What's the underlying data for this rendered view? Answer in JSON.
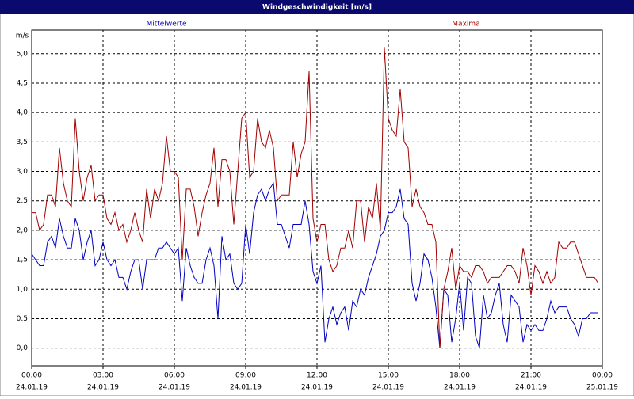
{
  "chart_data": {
    "type": "line",
    "title": "Windgeschwindigkeit [m/s]",
    "y_unit": "m/s",
    "x": [
      0,
      10,
      20,
      30,
      40,
      50,
      60,
      70,
      80,
      90,
      100,
      110,
      120,
      130,
      140,
      150,
      160,
      170,
      180,
      190,
      200,
      210,
      220,
      230,
      240,
      250,
      260,
      270,
      280,
      290,
      300,
      310,
      320,
      330,
      340,
      350,
      360,
      370,
      380,
      390,
      400,
      410,
      420,
      430,
      440,
      450,
      460,
      470,
      480,
      490,
      500,
      510,
      520,
      530,
      540,
      550,
      560,
      570,
      580,
      590,
      600,
      610,
      620,
      630,
      640,
      650,
      660,
      670,
      680,
      690,
      700,
      710,
      720,
      730,
      740,
      750,
      760,
      770,
      780,
      790,
      800,
      810,
      820,
      830,
      840,
      850,
      860,
      870,
      880,
      890,
      900,
      910,
      920,
      930,
      940,
      950,
      960,
      970,
      980,
      990,
      1000,
      1010,
      1020,
      1030,
      1040,
      1050,
      1060,
      1070,
      1080,
      1090,
      1100,
      1110,
      1120,
      1130,
      1140,
      1150,
      1160,
      1170,
      1180,
      1190,
      1200,
      1210,
      1220,
      1230,
      1240,
      1250,
      1260,
      1270,
      1280,
      1290,
      1300,
      1310,
      1320,
      1330,
      1340,
      1350,
      1360,
      1370,
      1380,
      1390,
      1400,
      1410,
      1420,
      1430
    ],
    "series": [
      {
        "name": "Mittelwerte",
        "color": "#0000c0",
        "values": [
          1.6,
          1.5,
          1.4,
          1.4,
          1.8,
          1.9,
          1.7,
          2.2,
          1.9,
          1.7,
          1.7,
          2.2,
          2.0,
          1.5,
          1.8,
          2.0,
          1.4,
          1.5,
          1.8,
          1.5,
          1.4,
          1.5,
          1.2,
          1.2,
          1.0,
          1.3,
          1.5,
          1.5,
          1.0,
          1.5,
          1.5,
          1.5,
          1.7,
          1.7,
          1.8,
          1.7,
          1.6,
          1.7,
          0.8,
          1.7,
          1.4,
          1.2,
          1.1,
          1.1,
          1.5,
          1.7,
          1.4,
          0.5,
          1.9,
          1.5,
          1.6,
          1.1,
          1.0,
          1.1,
          2.1,
          1.6,
          2.3,
          2.6,
          2.7,
          2.5,
          2.7,
          2.8,
          2.1,
          2.1,
          1.9,
          1.7,
          2.1,
          2.1,
          2.1,
          2.5,
          2.1,
          1.3,
          1.1,
          1.4,
          0.1,
          0.5,
          0.7,
          0.4,
          0.6,
          0.7,
          0.3,
          0.8,
          0.7,
          1.0,
          0.9,
          1.2,
          1.4,
          1.6,
          1.9,
          2.0,
          2.3,
          2.3,
          2.4,
          2.7,
          2.2,
          2.1,
          1.1,
          0.8,
          1.1,
          1.6,
          1.5,
          1.2,
          0.7,
          0.0,
          1.0,
          0.9,
          0.1,
          0.5,
          1.1,
          0.3,
          1.2,
          1.1,
          0.2,
          0.0,
          0.9,
          0.5,
          0.6,
          0.9,
          1.1,
          0.4,
          0.1,
          0.9,
          0.8,
          0.7,
          0.1,
          0.4,
          0.3,
          0.4,
          0.3,
          0.3,
          0.5,
          0.8,
          0.6,
          0.7,
          0.7,
          0.7,
          0.5,
          0.4,
          0.2,
          0.5,
          0.5,
          0.6,
          0.6,
          0.6
        ]
      },
      {
        "name": "Maxima",
        "color": "#a00000",
        "values": [
          2.3,
          2.3,
          2.0,
          2.1,
          2.6,
          2.6,
          2.4,
          3.4,
          2.8,
          2.5,
          2.4,
          3.9,
          3.0,
          2.5,
          2.9,
          3.1,
          2.5,
          2.6,
          2.6,
          2.2,
          2.1,
          2.3,
          2.0,
          2.1,
          1.8,
          2.0,
          2.3,
          2.0,
          1.8,
          2.7,
          2.2,
          2.7,
          2.5,
          2.8,
          3.6,
          3.0,
          3.0,
          2.9,
          1.5,
          2.7,
          2.7,
          2.4,
          1.9,
          2.3,
          2.6,
          2.8,
          3.4,
          2.4,
          3.2,
          3.2,
          3.0,
          2.1,
          3.0,
          3.9,
          4.0,
          2.9,
          3.0,
          3.9,
          3.5,
          3.4,
          3.7,
          3.4,
          2.5,
          2.6,
          2.6,
          2.6,
          3.5,
          2.9,
          3.3,
          3.5,
          4.7,
          2.2,
          1.8,
          2.1,
          2.1,
          1.5,
          1.3,
          1.4,
          1.7,
          1.7,
          2.0,
          1.7,
          2.5,
          2.5,
          1.8,
          2.4,
          2.2,
          2.8,
          2.0,
          5.1,
          3.9,
          3.7,
          3.6,
          4.4,
          3.5,
          3.4,
          2.4,
          2.7,
          2.4,
          2.3,
          2.1,
          2.1,
          1.8,
          0.0,
          1.0,
          1.3,
          1.7,
          1.0,
          1.4,
          1.3,
          1.3,
          1.2,
          1.4,
          1.4,
          1.3,
          1.1,
          1.2,
          1.2,
          1.2,
          1.3,
          1.4,
          1.4,
          1.3,
          1.1,
          1.7,
          1.4,
          0.9,
          1.4,
          1.3,
          1.1,
          1.3,
          1.1,
          1.2,
          1.8,
          1.7,
          1.7,
          1.8,
          1.8,
          1.6,
          1.4,
          1.2,
          1.2,
          1.2,
          1.1
        ]
      }
    ],
    "xlim": [
      0,
      1440
    ],
    "xticks": [
      {
        "value": 0,
        "label": "00:00",
        "sublabel": "24.01.19"
      },
      {
        "value": 180,
        "label": "03:00",
        "sublabel": "24.01.19"
      },
      {
        "value": 360,
        "label": "06:00",
        "sublabel": "24.01.19"
      },
      {
        "value": 540,
        "label": "09:00",
        "sublabel": "24.01.19"
      },
      {
        "value": 720,
        "label": "12:00",
        "sublabel": "24.01.19"
      },
      {
        "value": 900,
        "label": "15:00",
        "sublabel": "24.01.19"
      },
      {
        "value": 1080,
        "label": "18:00",
        "sublabel": "24.01.19"
      },
      {
        "value": 1260,
        "label": "21:00",
        "sublabel": "24.01.19"
      },
      {
        "value": 1440,
        "label": "00:00",
        "sublabel": "25.01.19"
      }
    ],
    "ylim": [
      -0.3,
      5.4
    ],
    "yticks": [
      {
        "value": 0,
        "label": "0,0"
      },
      {
        "value": 0.5,
        "label": "0,5"
      },
      {
        "value": 1,
        "label": "1,0"
      },
      {
        "value": 1.5,
        "label": "1,5"
      },
      {
        "value": 2,
        "label": "2,0"
      },
      {
        "value": 2.5,
        "label": "2,5"
      },
      {
        "value": 3,
        "label": "3,0"
      },
      {
        "value": 3.5,
        "label": "3,5"
      },
      {
        "value": 4,
        "label": "4,0"
      },
      {
        "value": 4.5,
        "label": "4,5"
      },
      {
        "value": 5,
        "label": "5,0"
      }
    ],
    "grid": true
  }
}
